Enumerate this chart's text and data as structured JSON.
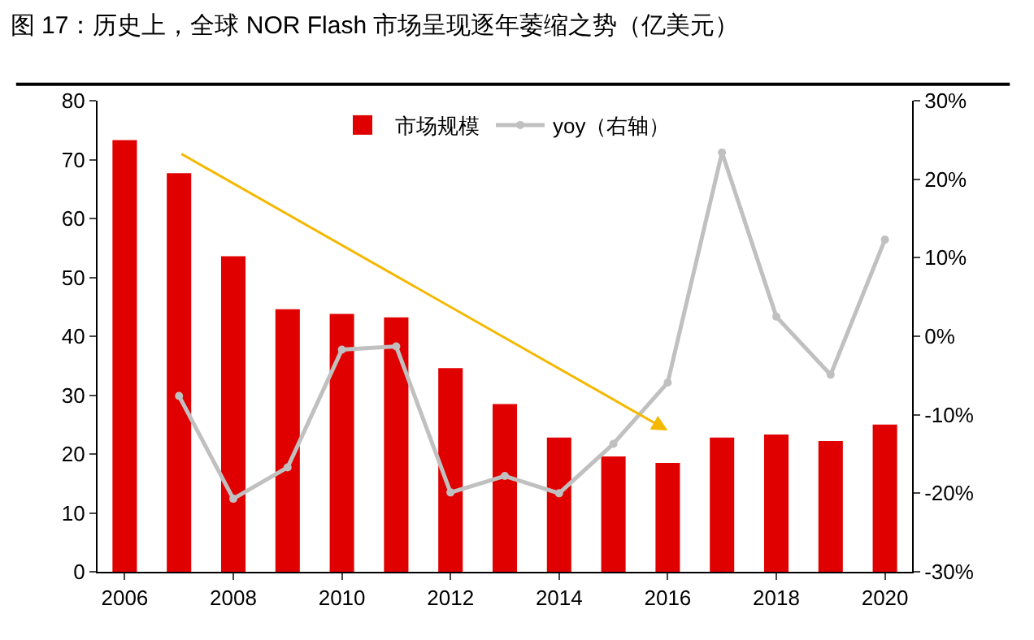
{
  "chart_data": {
    "type": "bar",
    "title": "图 17：历史上，全球 NOR Flash 市场呈现逐年萎缩之势（亿美元）",
    "categories": [
      "2006",
      null,
      "2008",
      null,
      "2010",
      null,
      "2012",
      null,
      "2014",
      null,
      "2016",
      null,
      "2018",
      null,
      "2020"
    ],
    "series": [
      {
        "name": "市场规模",
        "color": "#e00000",
        "values": [
          73.3,
          67.7,
          53.6,
          44.6,
          43.8,
          43.2,
          34.6,
          28.5,
          22.8,
          19.6,
          18.5,
          22.8,
          23.3,
          22.2,
          25.0
        ]
      },
      {
        "name": "yoy（右轴）",
        "type": "line",
        "axis": "y2",
        "color": "#c0c0c0",
        "marker": "circle",
        "values": [
          null,
          -7.6,
          -20.7,
          -16.7,
          -1.7,
          -1.3,
          -19.9,
          -17.8,
          -20.0,
          -13.7,
          -5.9,
          23.4,
          2.5,
          -4.9,
          12.3
        ]
      }
    ],
    "ylim": [
      0,
      80
    ],
    "yticks": [
      0,
      10,
      20,
      30,
      40,
      50,
      60,
      70,
      80
    ],
    "y2lim": [
      -30,
      30
    ],
    "y2ticks": [
      {
        "value": -30,
        "label": "-30%"
      },
      {
        "value": -20,
        "label": "-20%"
      },
      {
        "value": -10,
        "label": "-10%"
      },
      {
        "value": 0,
        "label": "0%"
      },
      {
        "value": 10,
        "label": "10%"
      },
      {
        "value": 20,
        "label": "20%"
      },
      {
        "value": 30,
        "label": "30%"
      }
    ],
    "grid": false,
    "legend": "top"
  }
}
